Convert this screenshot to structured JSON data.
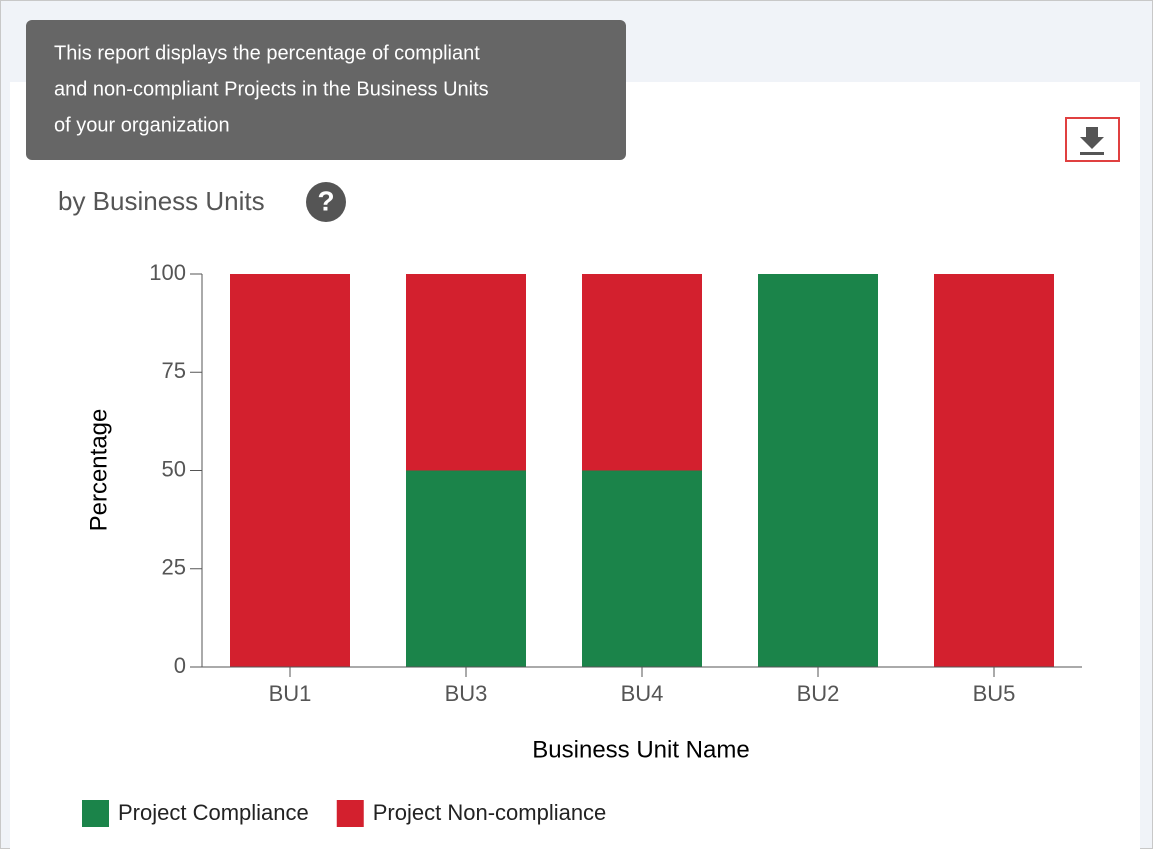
{
  "tooltip": {
    "lines": [
      "This report displays the percentage of compliant",
      "and non-compliant Projects in the Business Units",
      "of your organization"
    ]
  },
  "chart_data": {
    "type": "stacked_bar",
    "subtitle": "by Business Units",
    "categories": [
      "BU1",
      "BU3",
      "BU4",
      "BU2",
      "BU5"
    ],
    "series": [
      {
        "name": "Project Compliance",
        "color": "#1b844a",
        "values": [
          0,
          50,
          50,
          100,
          0
        ]
      },
      {
        "name": "Project Non-compliance",
        "color": "#d3202e",
        "values": [
          100,
          50,
          50,
          0,
          100
        ]
      }
    ],
    "ylim": [
      0,
      100
    ],
    "yticks": [
      0,
      25,
      50,
      75,
      100
    ],
    "xlabel": "Business Unit Name",
    "ylabel": "Percentage",
    "legend": "bottom-left"
  }
}
